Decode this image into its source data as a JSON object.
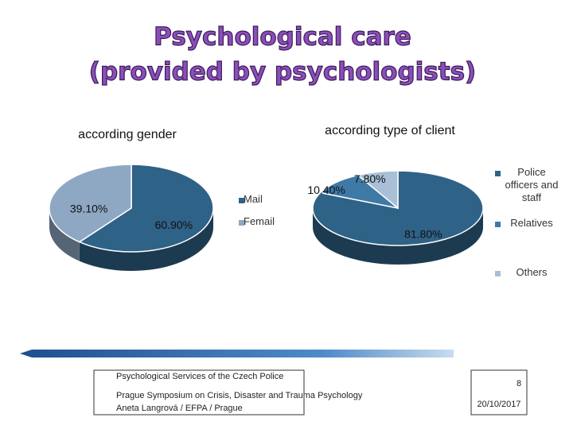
{
  "title": [
    "Psychological care",
    "(provided by psychologists)"
  ],
  "chart_data": [
    {
      "type": "pie",
      "title": "according gender",
      "categories": [
        "Mail",
        "Femail"
      ],
      "values": [
        60.9,
        39.1
      ],
      "value_labels": [
        "60.90%",
        "39.10%"
      ],
      "colors": [
        "#2f6287",
        "#8ea8c4"
      ]
    },
    {
      "type": "pie",
      "title": "according type of client",
      "categories": [
        "Police officers and staff",
        "Relatives",
        "Others"
      ],
      "values": [
        81.8,
        10.4,
        7.8
      ],
      "value_labels": [
        "81.80%",
        "10.40%",
        "7.80%"
      ],
      "colors": [
        "#2f6287",
        "#3f79a6",
        "#a8bfd6"
      ]
    }
  ],
  "footer": {
    "lines": [
      "Psychological Services of the Czech Police",
      "Prague Symposium on Crisis, Disaster and Trauma Psychology",
      "Aneta Langrová / EFPA / Prague"
    ],
    "page": "8",
    "date": "20/10/2017"
  }
}
